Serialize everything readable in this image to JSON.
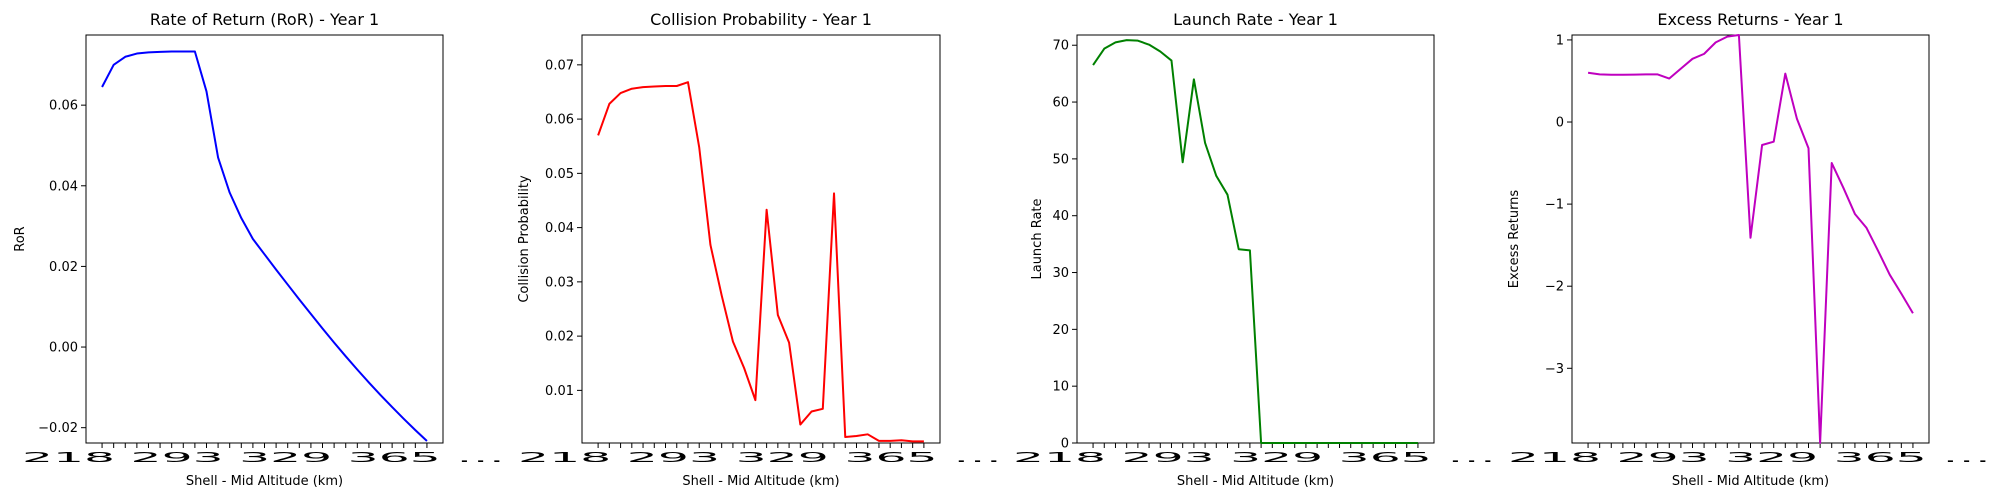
{
  "chart_data": [
    {
      "type": "line",
      "title": "Rate of Return (RoR) - Year 1",
      "xlabel": "Shell - Mid Altitude (km)",
      "ylabel": "RoR",
      "color": "#0000ff",
      "x_tick_text": "218 293 329 365 …",
      "yticks": [
        -0.02,
        0.0,
        0.02,
        0.04,
        0.06
      ],
      "ytick_labels": [
        "−0.02",
        "0.00",
        "0.02",
        "0.04",
        "0.06"
      ],
      "ylim": [
        -0.0238,
        0.0774
      ],
      "grid": false,
      "series": [
        {
          "values": [
            0.0645,
            0.07,
            0.072,
            0.0728,
            0.0731,
            0.0732,
            0.0733,
            0.0733,
            0.0733,
            0.0634,
            0.047,
            0.0383,
            0.032,
            0.0268,
            0.023,
            0.0192,
            0.0155,
            0.0118,
            0.0082,
            0.0046,
            0.0011,
            -0.0023,
            -0.0056,
            -0.0088,
            -0.0119,
            -0.0149,
            -0.0178,
            -0.0206,
            -0.0233
          ]
        }
      ]
    },
    {
      "type": "line",
      "title": "Collision Probability - Year 1",
      "xlabel": "Shell - Mid Altitude (km)",
      "ylabel": "Collision Probability",
      "color": "#ff0000",
      "x_tick_text": "218 293 329 365 …",
      "yticks": [
        0.01,
        0.02,
        0.03,
        0.04,
        0.05,
        0.06,
        0.07
      ],
      "ytick_labels": [
        "0.01",
        "0.02",
        "0.03",
        "0.04",
        "0.05",
        "0.06",
        "0.07"
      ],
      "ylim": [
        0.0003,
        0.0755
      ],
      "grid": false,
      "series": [
        {
          "values": [
            0.057,
            0.0628,
            0.0648,
            0.0656,
            0.0659,
            0.066,
            0.0661,
            0.0661,
            0.0668,
            0.0548,
            0.0368,
            0.0275,
            0.019,
            0.0141,
            0.0082,
            0.0433,
            0.0239,
            0.0188,
            0.0037,
            0.0061,
            0.0066,
            0.0463,
            0.0014,
            0.0016,
            0.0019,
            0.0007,
            0.0007,
            0.0008,
            0.0006,
            0.0006
          ]
        }
      ]
    },
    {
      "type": "line",
      "title": "Launch Rate - Year 1",
      "xlabel": "Shell - Mid Altitude (km)",
      "ylabel": "Launch Rate",
      "color": "#008000",
      "x_tick_text": "218 293 329 365 …",
      "yticks": [
        0,
        10,
        20,
        30,
        40,
        50,
        60,
        70
      ],
      "ytick_labels": [
        "0",
        "10",
        "20",
        "30",
        "40",
        "50",
        "60",
        "70"
      ],
      "ylim": [
        0,
        71.8
      ],
      "grid": false,
      "series": [
        {
          "values": [
            66.5,
            69.4,
            70.5,
            70.9,
            70.8,
            70.1,
            68.9,
            67.3,
            49.4,
            64.0,
            52.8,
            47.0,
            43.7,
            34.1,
            33.9,
            0.0,
            0.0,
            0.0,
            0.0,
            0.0,
            0.0,
            0.0,
            0.0,
            0.0,
            0.0,
            0.0,
            0.0,
            0.0,
            0.0,
            0.0
          ]
        }
      ]
    },
    {
      "type": "line",
      "title": "Excess Returns - Year 1",
      "xlabel": "Shell - Mid Altitude (km)",
      "ylabel": "Excess Returns",
      "color": "#bf00bf",
      "x_tick_text": "218 293 329 365 …",
      "yticks": [
        -3,
        -2,
        -1,
        0,
        1
      ],
      "ytick_labels": [
        "−3",
        "−2",
        "−1",
        "0",
        "1"
      ],
      "ylim": [
        -3.91,
        1.06
      ],
      "grid": false,
      "series": [
        {
          "values": [
            0.6,
            0.58,
            0.575,
            0.575,
            0.578,
            0.58,
            0.58,
            0.53,
            0.65,
            0.77,
            0.83,
            0.97,
            1.04,
            1.06,
            -1.41,
            -0.28,
            -0.24,
            0.59,
            0.04,
            -0.32,
            -3.91,
            -0.5,
            -0.8,
            -1.12,
            -1.29,
            -1.57,
            -1.86,
            -2.09,
            -2.33
          ]
        }
      ]
    }
  ]
}
